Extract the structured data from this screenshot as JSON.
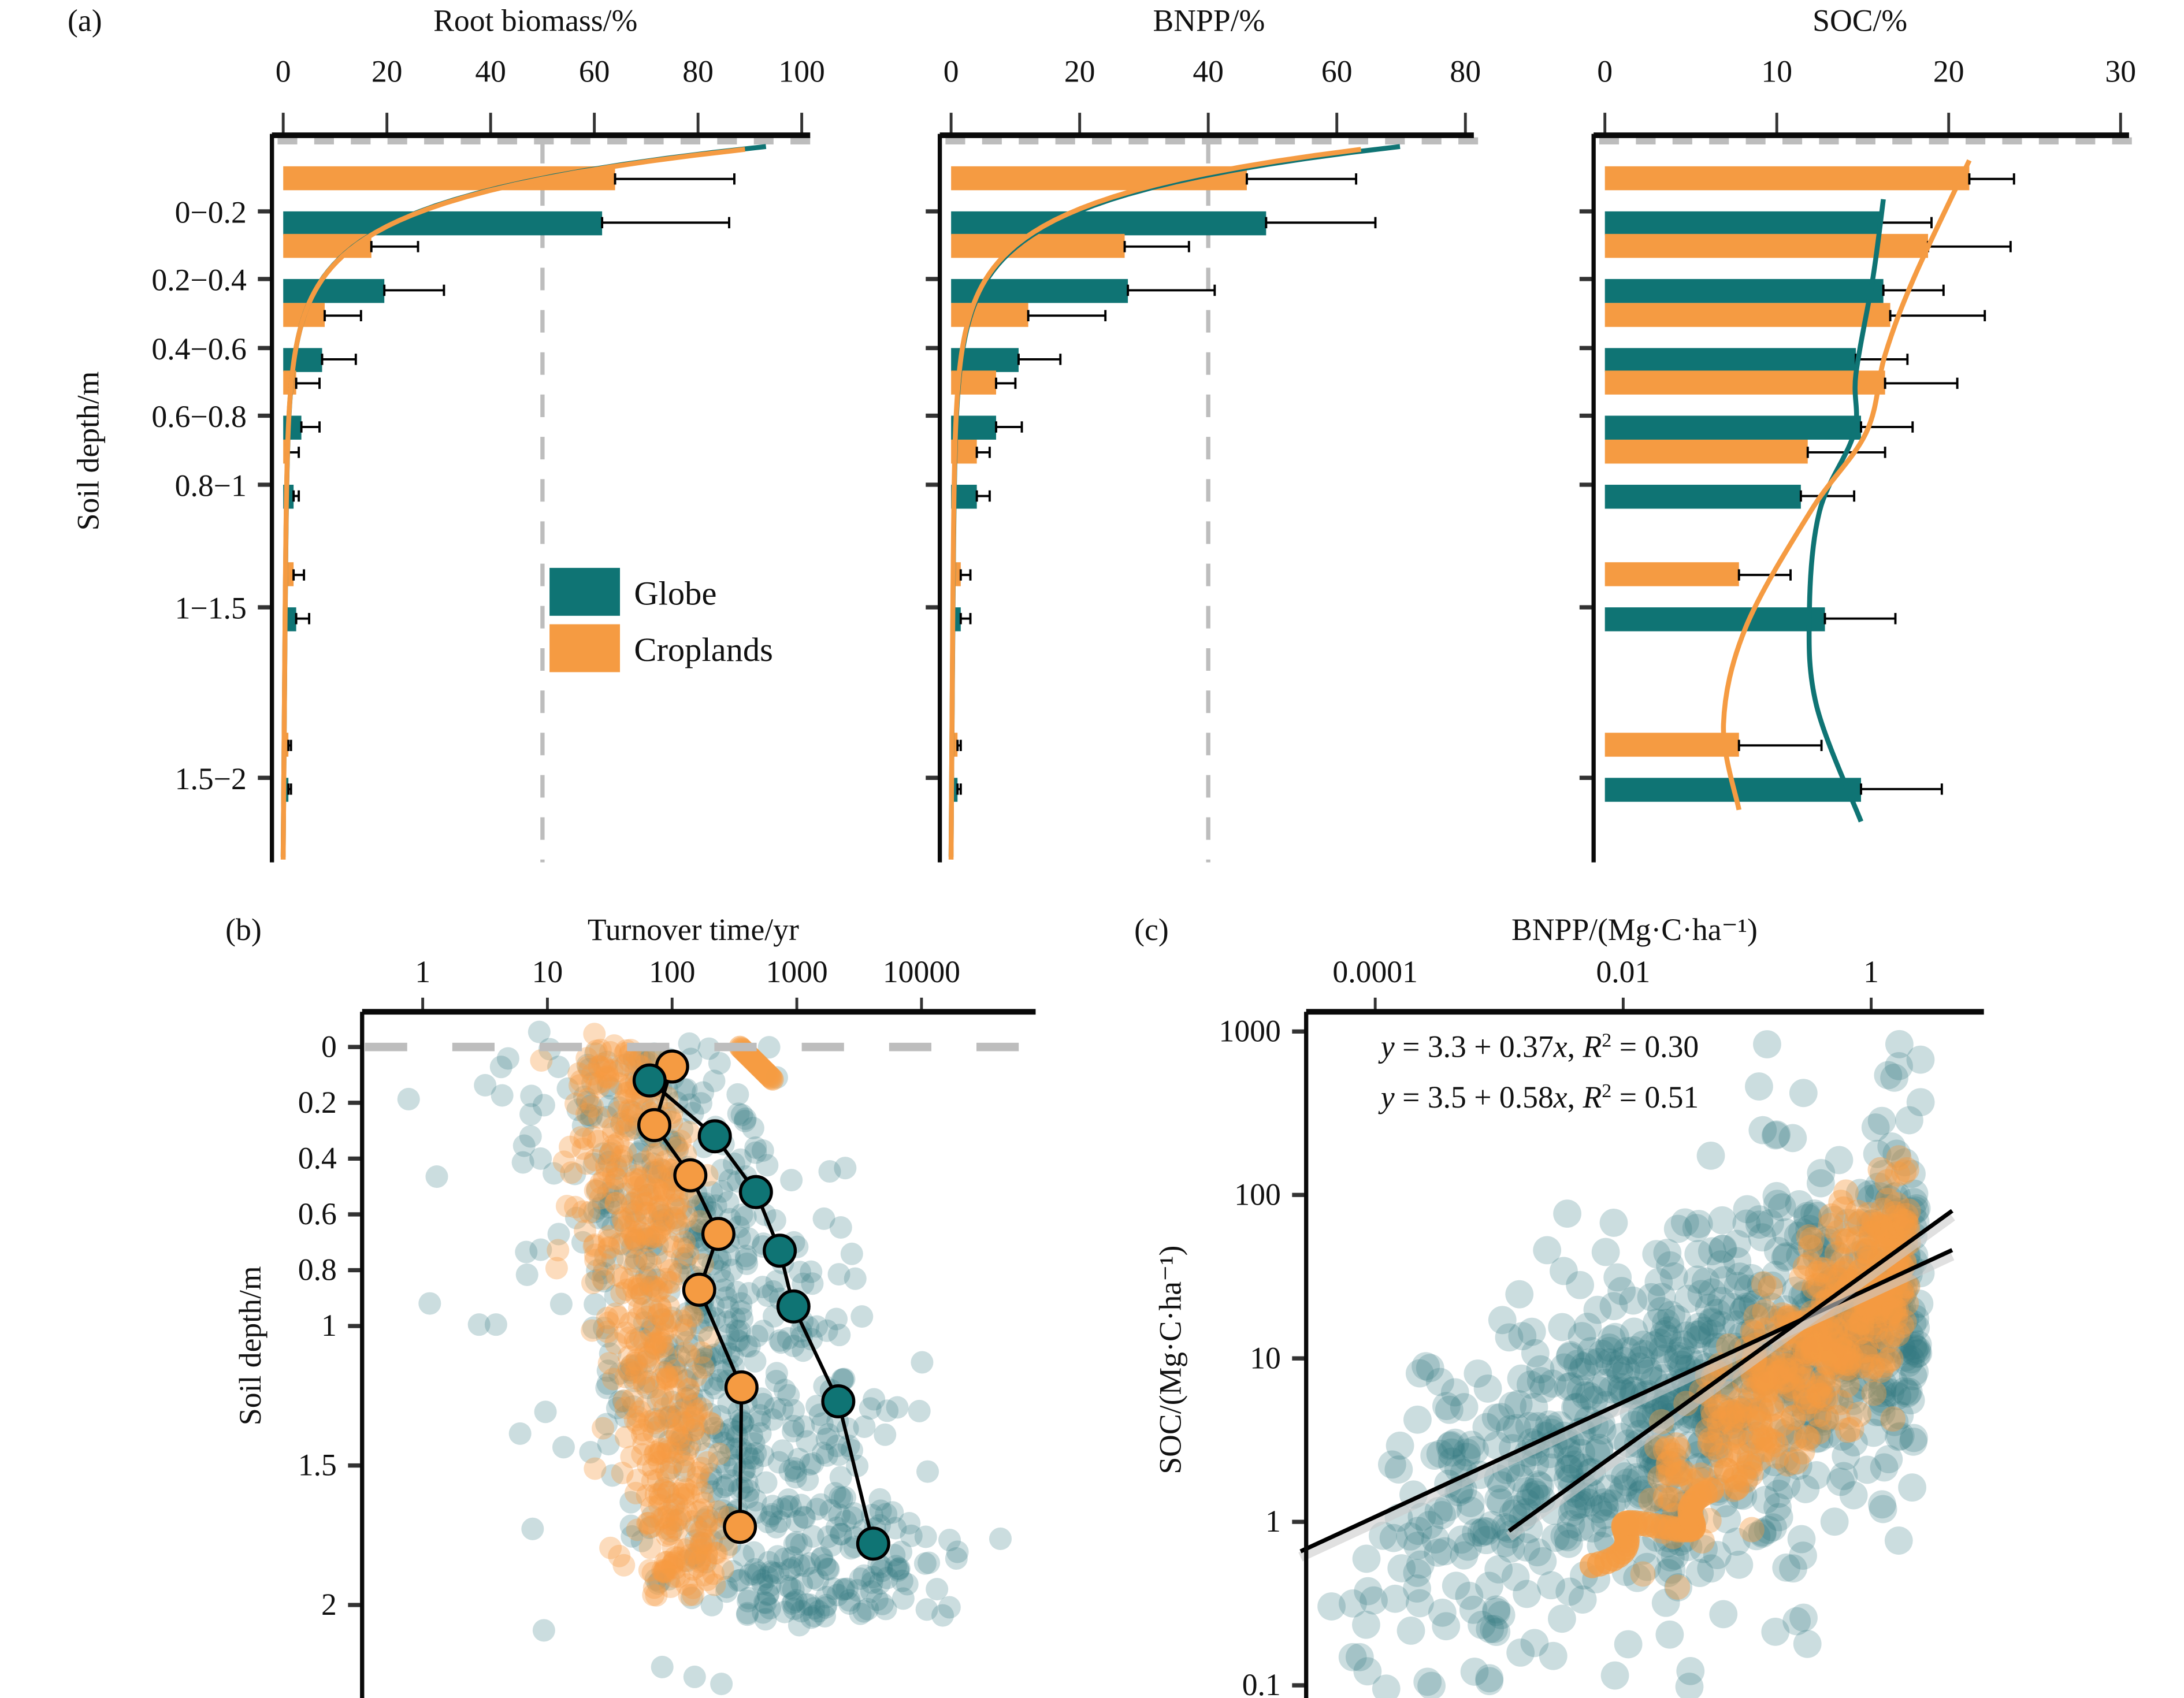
{
  "colors": {
    "globe": "#0f7474",
    "croplands": "#f59b42",
    "axis": "#0a0a0a",
    "refline": "#bdbdbd",
    "globe_point": "#2f7880",
    "croplands_point": "#f59b42"
  },
  "legend": {
    "items": [
      {
        "label": "Globe",
        "series": "globe"
      },
      {
        "label": "Croplands",
        "series": "croplands"
      }
    ]
  },
  "chart_data": [
    {
      "panel": "(a)",
      "type": "bar",
      "orientation": "horizontal",
      "title": "Root biomass/%",
      "xlabel": "Root biomass/%",
      "ylabel": "Soil depth/m",
      "xlim": [
        0,
        100
      ],
      "xticks": [
        "0",
        "20",
        "40",
        "60",
        "80",
        "100"
      ],
      "reference_line_x": 50,
      "categories": [
        "0−0.2",
        "0.2−0.4",
        "0.4−0.6",
        "0.6−0.8",
        "0.8−1",
        "1−1.5",
        "1.5−2"
      ],
      "category_depth_mid": [
        0.1,
        0.3,
        0.5,
        0.7,
        0.9,
        1.25,
        1.75
      ],
      "series": [
        {
          "name": "Croplands",
          "values": [
            64,
            17,
            8,
            2.5,
            1,
            2,
            1
          ],
          "error_upper": [
            87,
            26,
            15,
            7,
            3,
            4,
            1.5
          ]
        },
        {
          "name": "Globe",
          "values": [
            61.5,
            19.5,
            7.5,
            3.5,
            2,
            2.5,
            1
          ],
          "error_upper": [
            86,
            31,
            14,
            7,
            3,
            5,
            1.5
          ]
        }
      ],
      "fit_curves": [
        {
          "name": "Globe",
          "top_value": 92,
          "decay": "exponential"
        },
        {
          "name": "Croplands",
          "top_value": 88,
          "decay": "exponential"
        }
      ]
    },
    {
      "panel": "(a)",
      "type": "bar",
      "orientation": "horizontal",
      "title": "BNPP/%",
      "xlabel": "BNPP/%",
      "ylabel": "",
      "xlim": [
        0,
        80
      ],
      "xticks": [
        "0",
        "20",
        "40",
        "60",
        "80"
      ],
      "reference_line_x": 40,
      "categories": [
        "0−0.2",
        "0.2−0.4",
        "0.4−0.6",
        "0.6−0.8",
        "0.8−1",
        "1−1.5",
        "1.5−2"
      ],
      "series": [
        {
          "name": "Croplands",
          "values": [
            46,
            27,
            12,
            7,
            4,
            1.5,
            1
          ],
          "error_upper": [
            63,
            37,
            24,
            10,
            6,
            3,
            1.5
          ]
        },
        {
          "name": "Globe",
          "values": [
            49,
            27.5,
            10.5,
            7,
            4,
            1.5,
            1
          ],
          "error_upper": [
            66,
            41,
            17,
            11,
            6,
            3,
            1.5
          ]
        }
      ],
      "fit_curves": [
        {
          "name": "Globe",
          "top_value": 69,
          "decay": "exponential"
        },
        {
          "name": "Croplands",
          "top_value": 63,
          "decay": "exponential"
        }
      ]
    },
    {
      "panel": "(a)",
      "type": "bar",
      "orientation": "horizontal",
      "title": "SOC/%",
      "xlabel": "SOC/%",
      "ylabel": "",
      "xlim": [
        0,
        30
      ],
      "xticks": [
        "0",
        "10",
        "20",
        "30"
      ],
      "categories": [
        "0−0.2",
        "0.2−0.4",
        "0.4−0.6",
        "0.6−0.8",
        "0.8−1",
        "1−1.5",
        "1.5−2"
      ],
      "series": [
        {
          "name": "Croplands",
          "values": [
            21.2,
            18.8,
            16.6,
            16.3,
            11.8,
            7.8,
            7.8
          ],
          "error_upper": [
            23.8,
            23.6,
            22.1,
            20.5,
            16.3,
            10.8,
            12.6
          ]
        },
        {
          "name": "Globe",
          "values": [
            16.0,
            16.2,
            14.6,
            14.9,
            11.4,
            12.8,
            14.9
          ],
          "error_upper": [
            19.0,
            19.7,
            17.6,
            17.9,
            14.5,
            16.9,
            19.6
          ]
        }
      ],
      "fit_curves": [
        {
          "name": "Globe",
          "points": [
            [
              16.2,
              0.15
            ],
            [
              15.6,
              0.35
            ],
            [
              14.6,
              0.6
            ],
            [
              14.5,
              0.75
            ],
            [
              12.5,
              0.95
            ],
            [
              11.9,
              1.2
            ],
            [
              12.3,
              1.45
            ],
            [
              14.9,
              1.75
            ]
          ]
        },
        {
          "name": "Croplands",
          "points": [
            [
              21.2,
              0.05
            ],
            [
              18.0,
              0.35
            ],
            [
              16.3,
              0.55
            ],
            [
              15.2,
              0.75
            ],
            [
              12.0,
              0.95
            ],
            [
              8.2,
              1.25
            ],
            [
              6.9,
              1.5
            ],
            [
              7.8,
              1.72
            ]
          ]
        }
      ]
    },
    {
      "panel": "(b)",
      "type": "scatter",
      "title": "Turnover time/yr",
      "xlabel": "Turnover time/yr",
      "ylabel": "Soil depth/m",
      "xscale": "log",
      "xlim": [
        0.3,
        60000
      ],
      "xticks": [
        "1",
        "10",
        "100",
        "1000",
        "10000"
      ],
      "ylim": [
        0,
        2.3
      ],
      "yticks": [
        "0",
        "0.2",
        "0.4",
        "0.6",
        "0.8",
        "1",
        "1.5",
        "2"
      ],
      "reference_line_y": 0,
      "series": [
        {
          "name": "Croplands mean",
          "x": [
            100,
            72,
            140,
            235,
            165,
            360,
            350
          ],
          "y": [
            0.07,
            0.28,
            0.46,
            0.67,
            0.87,
            1.22,
            1.72
          ]
        },
        {
          "name": "Globe mean",
          "x": [
            66,
            220,
            470,
            730,
            940,
            2150,
            4100
          ],
          "y": [
            0.12,
            0.32,
            0.52,
            0.73,
            0.93,
            1.27,
            1.78
          ]
        }
      ],
      "point_cloud": "many semi-transparent Globe and Croplands observations"
    },
    {
      "panel": "(c)",
      "type": "scatter",
      "title": "BNPP/(Mg·C·ha⁻¹)",
      "xlabel": "BNPP/(Mg·C·ha⁻¹)",
      "ylabel": "SOC/(Mg·C·ha⁻¹)",
      "xscale": "log",
      "yscale": "log",
      "xlim": [
        2e-05,
        6
      ],
      "ylim": [
        0.06,
        1000
      ],
      "xticks": [
        "0.0001",
        "0.01",
        "1"
      ],
      "yticks": [
        "1000",
        "100",
        "10",
        "1",
        "0.1"
      ],
      "annotations": [
        {
          "series": "Globe",
          "text_parts": [
            "y",
            " = 3.3 + 0.37",
            "x",
            ", ",
            "R",
            "2",
            " = 0.30"
          ]
        },
        {
          "series": "Croplands",
          "text_parts": [
            "y",
            " = 3.5 + 0.58",
            "x",
            ", ",
            "R",
            "2",
            " = 0.51"
          ]
        }
      ],
      "regressions": [
        {
          "name": "Globe",
          "x_range": [
            2.5e-05,
            4.5
          ],
          "y_at_ends": [
            0.66,
            46
          ]
        },
        {
          "name": "Croplands",
          "x_range": [
            0.0012,
            4.5
          ],
          "y_at_ends": [
            0.88,
            80
          ]
        }
      ],
      "point_cloud": "many semi-transparent Globe and Croplands observations"
    }
  ],
  "panel_labels": {
    "a": "(a)",
    "b": "(b)",
    "c": "(c)"
  },
  "axis_titles": {
    "root": "Root biomass/%",
    "bnpp": "BNPP/%",
    "soc": "SOC/%",
    "depth_a": "Soil depth/m",
    "turnover": "Turnover time/yr",
    "depth_b": "Soil depth/m",
    "bnpp_c": "BNPP/(Mg·C·ha⁻¹)",
    "soc_c": "SOC/(Mg·C·ha⁻¹)"
  }
}
